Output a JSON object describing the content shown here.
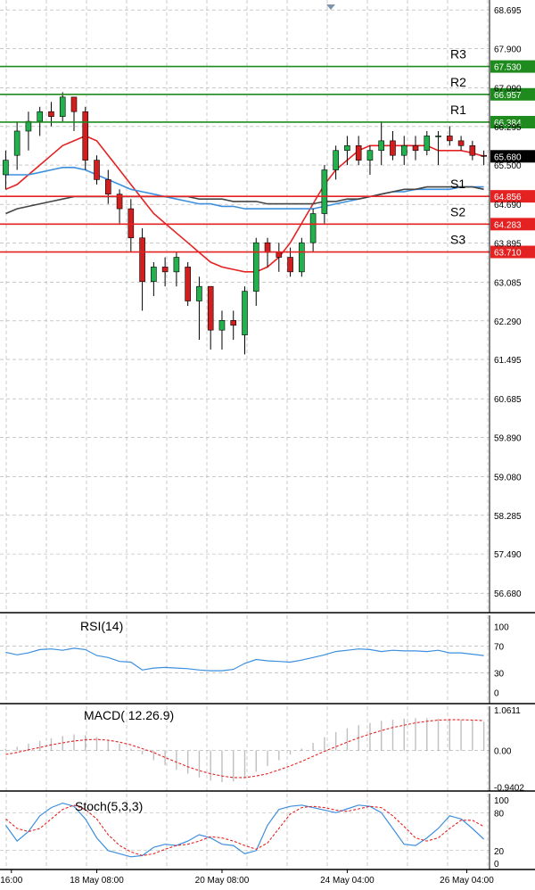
{
  "chart_data": [
    {
      "type": "candlestick",
      "title": "",
      "xlabel": "",
      "ylabel": "",
      "ylim": [
        56.28,
        68.9
      ],
      "y_ticks": [
        "68.695",
        "67.900",
        "67.090",
        "66.295",
        "65.500",
        "64.690",
        "63.895",
        "63.085",
        "62.290",
        "61.495",
        "60.685",
        "59.890",
        "59.080",
        "58.285",
        "57.490",
        "56.680"
      ],
      "x_ticks": [
        {
          "label": "16:00",
          "i": 0.5
        },
        {
          "label": "18 May 08:00",
          "i": 8
        },
        {
          "label": "20 May 08:00",
          "i": 19
        },
        {
          "label": "24 May 04:00",
          "i": 30
        },
        {
          "label": "26 May 04:00",
          "i": 40.5
        }
      ],
      "current_price": "65.680",
      "levels": [
        {
          "name": "R3",
          "value": 67.53,
          "label": "67.530",
          "kind": "resistance"
        },
        {
          "name": "R2",
          "value": 66.957,
          "label": "66.957",
          "kind": "resistance"
        },
        {
          "name": "R1",
          "value": 66.384,
          "label": "66.384",
          "kind": "resistance"
        },
        {
          "name": "S1",
          "value": 64.856,
          "label": "64.856",
          "kind": "support"
        },
        {
          "name": "S2",
          "value": 64.283,
          "label": "64.283",
          "kind": "support"
        },
        {
          "name": "S3",
          "value": 63.71,
          "label": "63.710",
          "kind": "support"
        }
      ],
      "candles": [
        [
          65.3,
          65.8,
          65.0,
          65.6
        ],
        [
          65.7,
          66.4,
          65.4,
          66.2
        ],
        [
          66.2,
          66.6,
          65.8,
          66.4
        ],
        [
          66.4,
          66.7,
          66.1,
          66.6
        ],
        [
          66.6,
          66.8,
          66.3,
          66.5
        ],
        [
          66.5,
          67.0,
          66.4,
          66.9
        ],
        [
          66.9,
          66.9,
          66.2,
          66.6
        ],
        [
          66.6,
          66.7,
          65.4,
          65.6
        ],
        [
          65.6,
          65.7,
          65.1,
          65.2
        ],
        [
          65.2,
          65.4,
          64.7,
          64.9
        ],
        [
          64.9,
          65.0,
          64.3,
          64.6
        ],
        [
          64.6,
          64.8,
          63.7,
          64.0
        ],
        [
          64.0,
          64.2,
          62.5,
          63.1
        ],
        [
          63.1,
          63.5,
          62.8,
          63.4
        ],
        [
          63.4,
          63.6,
          63.0,
          63.3
        ],
        [
          63.3,
          63.7,
          63.0,
          63.6
        ],
        [
          63.4,
          63.5,
          62.6,
          62.7
        ],
        [
          62.7,
          63.2,
          61.9,
          63.0
        ],
        [
          63.0,
          63.0,
          61.7,
          62.1
        ],
        [
          62.1,
          62.5,
          61.7,
          62.3
        ],
        [
          62.3,
          62.5,
          61.9,
          62.2
        ],
        [
          62.0,
          63.0,
          61.6,
          62.9
        ],
        [
          62.9,
          64.0,
          62.6,
          63.9
        ],
        [
          63.9,
          64.0,
          63.4,
          63.7
        ],
        [
          63.7,
          63.9,
          63.3,
          63.6
        ],
        [
          63.6,
          63.8,
          63.2,
          63.3
        ],
        [
          63.3,
          64.0,
          63.2,
          63.9
        ],
        [
          63.9,
          64.6,
          63.7,
          64.5
        ],
        [
          64.5,
          65.5,
          64.3,
          65.4
        ],
        [
          65.4,
          65.9,
          65.2,
          65.8
        ],
        [
          65.8,
          66.1,
          65.5,
          65.9
        ],
        [
          65.9,
          66.1,
          65.5,
          65.6
        ],
        [
          65.6,
          65.9,
          65.3,
          65.8
        ],
        [
          65.8,
          66.4,
          65.5,
          66.0
        ],
        [
          66.0,
          66.2,
          65.6,
          65.7
        ],
        [
          65.7,
          66.1,
          65.5,
          65.9
        ],
        [
          65.9,
          66.1,
          65.6,
          65.8
        ],
        [
          65.8,
          66.2,
          65.7,
          66.1
        ],
        [
          66.1,
          66.2,
          65.5,
          66.1
        ],
        [
          66.1,
          66.3,
          65.9,
          66.0
        ],
        [
          66.0,
          66.1,
          65.8,
          65.9
        ],
        [
          65.9,
          66.0,
          65.6,
          65.7
        ],
        [
          65.7,
          65.8,
          65.5,
          65.68
        ]
      ],
      "series": [
        {
          "kind": "ma",
          "color": "#e52222",
          "values": [
            65.0,
            65.1,
            65.3,
            65.5,
            65.7,
            65.9,
            66.0,
            66.1,
            66.0,
            65.7,
            65.4,
            65.1,
            64.8,
            64.5,
            64.3,
            64.1,
            63.9,
            63.7,
            63.5,
            63.4,
            63.35,
            63.3,
            63.3,
            63.4,
            63.6,
            63.9,
            64.3,
            64.7,
            65.1,
            65.4,
            65.6,
            65.8,
            65.9,
            65.9,
            65.9,
            65.9,
            65.9,
            65.9,
            65.8,
            65.8,
            65.8,
            65.75,
            65.68
          ]
        },
        {
          "kind": "ma",
          "color": "#3d8fde",
          "values": [
            65.3,
            65.3,
            65.3,
            65.35,
            65.4,
            65.45,
            65.45,
            65.4,
            65.3,
            65.2,
            65.1,
            65.0,
            64.95,
            64.9,
            64.85,
            64.8,
            64.75,
            64.7,
            64.7,
            64.65,
            64.65,
            64.6,
            64.6,
            64.6,
            64.6,
            64.6,
            64.6,
            64.6,
            64.65,
            64.7,
            64.75,
            64.8,
            64.85,
            64.9,
            64.95,
            64.95,
            65.0,
            65.0,
            65.0,
            65.0,
            65.05,
            65.05,
            65.05
          ]
        },
        {
          "kind": "ma",
          "color": "#444444",
          "values": [
            64.5,
            64.6,
            64.65,
            64.7,
            64.75,
            64.8,
            64.85,
            64.85,
            64.85,
            64.85,
            64.85,
            64.85,
            64.85,
            64.85,
            64.85,
            64.85,
            64.85,
            64.8,
            64.8,
            64.8,
            64.75,
            64.75,
            64.75,
            64.7,
            64.7,
            64.7,
            64.7,
            64.7,
            64.75,
            64.75,
            64.8,
            64.8,
            64.85,
            64.9,
            64.95,
            65.0,
            65.0,
            65.05,
            65.05,
            65.05,
            65.05,
            65.05,
            65.0
          ]
        }
      ]
    },
    {
      "type": "line",
      "title": "RSI(14)",
      "ylim": [
        0,
        100
      ],
      "y_ticks": [
        "100",
        "70",
        "30",
        "0"
      ],
      "series": [
        {
          "kind": "rsi",
          "color": "#3d8fde",
          "values": [
            61,
            57,
            60,
            65,
            66,
            64,
            67,
            65,
            56,
            53,
            47,
            46,
            34,
            37,
            38,
            37,
            36,
            34,
            33,
            33,
            35,
            44,
            50,
            48,
            47,
            46,
            49,
            53,
            57,
            62,
            64,
            66,
            65,
            62,
            64,
            63,
            63,
            62,
            64,
            60,
            60,
            58,
            56
          ]
        }
      ]
    },
    {
      "type": "bar",
      "title": "MACD( 12.26.9)",
      "ylim": [
        -1.05,
        1.15
      ],
      "y_ticks": [
        "1.0611",
        "0.00",
        "-0.9402"
      ],
      "series": [
        {
          "kind": "macd_histogram",
          "color": "#bfbfbf",
          "values": [
            0.05,
            0.1,
            0.18,
            0.25,
            0.32,
            0.38,
            0.42,
            0.4,
            0.35,
            0.28,
            0.18,
            0.05,
            -0.1,
            -0.25,
            -0.38,
            -0.5,
            -0.6,
            -0.7,
            -0.78,
            -0.82,
            -0.8,
            -0.7,
            -0.55,
            -0.4,
            -0.25,
            -0.1,
            0.05,
            0.2,
            0.35,
            0.48,
            0.58,
            0.66,
            0.72,
            0.77,
            0.8,
            0.83,
            0.84,
            0.84,
            0.83,
            0.82,
            0.8,
            0.78,
            0.75
          ]
        },
        {
          "kind": "signal",
          "color": "#e52222",
          "values": [
            -0.1,
            -0.05,
            0.02,
            0.08,
            0.15,
            0.2,
            0.25,
            0.28,
            0.29,
            0.27,
            0.22,
            0.15,
            0.05,
            -0.05,
            -0.18,
            -0.3,
            -0.42,
            -0.52,
            -0.6,
            -0.66,
            -0.7,
            -0.7,
            -0.66,
            -0.6,
            -0.5,
            -0.4,
            -0.28,
            -0.15,
            -0.02,
            0.1,
            0.22,
            0.33,
            0.43,
            0.52,
            0.6,
            0.66,
            0.72,
            0.76,
            0.79,
            0.8,
            0.8,
            0.79,
            0.78
          ]
        }
      ]
    },
    {
      "type": "line",
      "title": "Stoch(5,3,3)",
      "ylim": [
        0,
        100
      ],
      "y_ticks": [
        "100",
        "80",
        "20",
        "0"
      ],
      "series": [
        {
          "kind": "main",
          "color": "#3d8fde",
          "values": [
            60,
            35,
            50,
            75,
            88,
            95,
            90,
            70,
            40,
            20,
            15,
            10,
            12,
            25,
            30,
            28,
            35,
            45,
            40,
            30,
            28,
            15,
            20,
            60,
            85,
            90,
            92,
            88,
            84,
            80,
            86,
            92,
            90,
            80,
            55,
            30,
            28,
            40,
            55,
            75,
            70,
            55,
            38
          ]
        },
        {
          "kind": "signal",
          "color": "#e52222",
          "values": [
            70,
            55,
            50,
            55,
            70,
            85,
            92,
            85,
            70,
            45,
            28,
            18,
            12,
            15,
            22,
            28,
            30,
            35,
            42,
            40,
            35,
            28,
            22,
            32,
            55,
            78,
            88,
            90,
            88,
            84,
            82,
            86,
            90,
            88,
            75,
            58,
            40,
            35,
            40,
            55,
            68,
            68,
            58
          ]
        }
      ]
    }
  ]
}
